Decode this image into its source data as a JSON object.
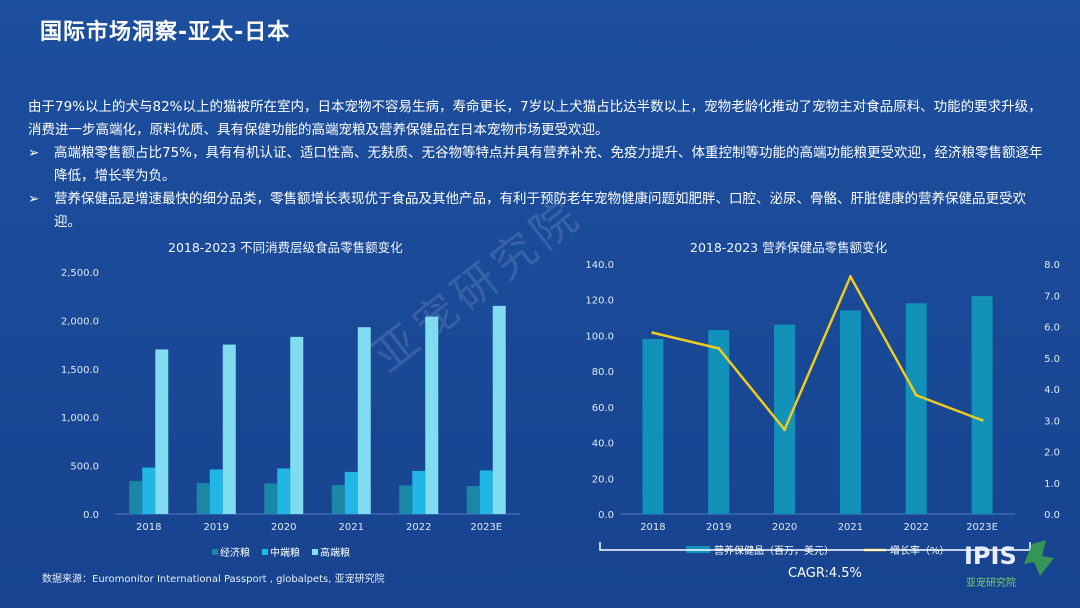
{
  "header": {
    "title": "国际市场洞察-亚太-日本"
  },
  "intro": "由于79%以上的犬与82%以上的猫被所在室内，日本宠物不容易生病，寿命更长，7岁以上犬猫占比达半数以上，宠物老龄化推动了宠物主对食品原料、功能的要求升级，消费进一步高端化，原料优质、具有保健功能的高端宠粮及营养保健品在日本宠物市场更受欢迎。",
  "bullets": [
    {
      "marker": "➢",
      "text": "高端粮零售额占比75%，具有有机认证、适口性高、无麸质、无谷物等特点并具有营养补充、免疫力提升、体重控制等功能的高端功能粮更受欢迎，经济粮零售额逐年降低，增长率为负。"
    },
    {
      "marker": "➢",
      "text": "营养保健品是增速最快的细分品类，零售额增长表现优于食品及其他产品，有利于预防老年宠物健康问题如肥胖、口腔、泌尿、骨骼、肝脏健康的营养保健品更受欢迎。"
    }
  ],
  "watermark": "亚宠研究院",
  "source": "数据来源：Euromonitor International Passport , globalpets, 亚宠研究院",
  "cagr": "CAGR:4.5%",
  "logo": {
    "mark": "IPIS",
    "tagline": "亚宠研究院"
  },
  "colors": {
    "economy": "#1c86a6",
    "mid": "#22b6e6",
    "premium": "#82dcef",
    "supplement": "#1291b9",
    "growth": "#f0cb1f"
  },
  "chart_data": [
    {
      "type": "bar",
      "title": "2018-2023 不同消费层级食品零售额变化",
      "categories": [
        "2018",
        "2019",
        "2020",
        "2021",
        "2022",
        "2023E"
      ],
      "series": [
        {
          "name": "经济粮",
          "values": [
            340,
            320,
            315,
            300,
            295,
            290
          ]
        },
        {
          "name": "中端粮",
          "values": [
            480,
            460,
            470,
            435,
            445,
            450
          ]
        },
        {
          "name": "高端粮",
          "values": [
            1700,
            1750,
            1830,
            1930,
            2040,
            2150
          ]
        }
      ],
      "ylim": [
        0,
        2500
      ],
      "yticks": [
        "0.0",
        "500.0",
        "1,000.0",
        "1,500.0",
        "2,000.0",
        "2,500.0"
      ],
      "legend": "bottom",
      "grid": false
    },
    {
      "type": "bar+line",
      "title": "2018-2023 营养保健品零售额变化",
      "categories": [
        "2018",
        "2019",
        "2020",
        "2021",
        "2022",
        "2023E"
      ],
      "series": [
        {
          "name": "营养保健品（百万，美元）",
          "type": "bar",
          "axis": "left",
          "values": [
            98,
            103,
            106,
            114,
            118,
            122
          ]
        },
        {
          "name": "增长率（%）",
          "type": "line",
          "axis": "right",
          "values": [
            5.8,
            5.3,
            2.7,
            7.6,
            3.8,
            3.0
          ]
        }
      ],
      "ylim": [
        0,
        140
      ],
      "yticks": [
        "0.0",
        "20.0",
        "40.0",
        "60.0",
        "80.0",
        "100.0",
        "120.0",
        "140.0"
      ],
      "y2lim": [
        0,
        8
      ],
      "y2ticks": [
        "0.0",
        "1.0",
        "2.0",
        "3.0",
        "4.0",
        "5.0",
        "6.0",
        "7.0",
        "8.0"
      ],
      "legend": "bottom",
      "grid": false
    }
  ]
}
